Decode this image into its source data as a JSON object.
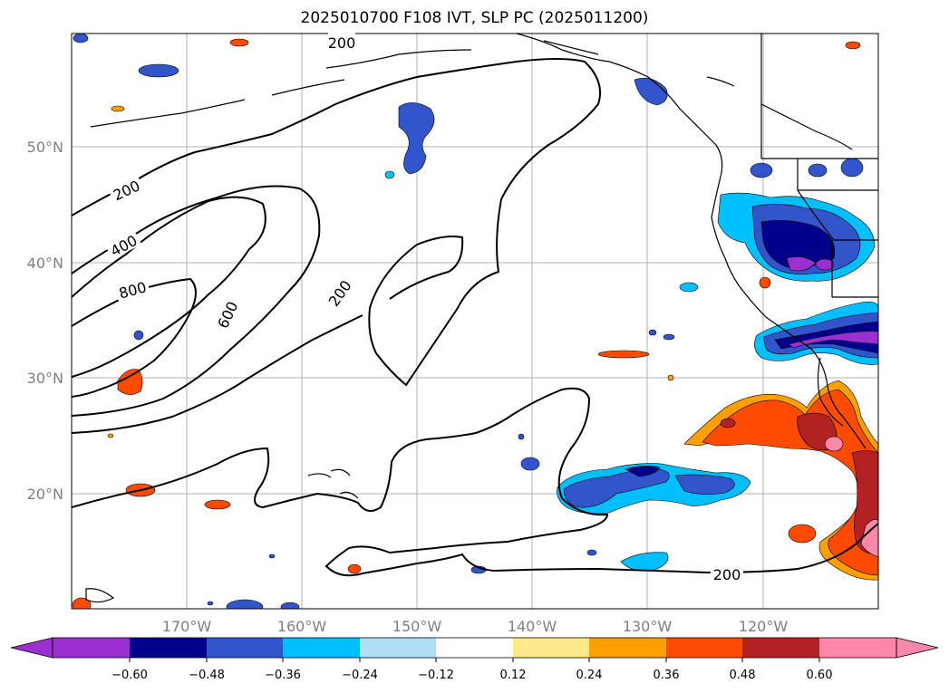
{
  "title": "2025010700 F108 IVT, SLP PC (2025011200)",
  "map": {
    "lon_labels": [
      "170°W",
      "160°W",
      "150°W",
      "140°W",
      "130°W",
      "120°W"
    ],
    "lat_labels": [
      "50°N",
      "40°N",
      "30°N",
      "20°N"
    ],
    "contour_labels": [
      "200",
      "200",
      "400",
      "800",
      "600",
      "200",
      "200"
    ],
    "colors": {
      "purple": "#9b30d0",
      "navy": "#00008b",
      "blue": "#3355cc",
      "cyan": "#00bfff",
      "lightblue": "#b0e0f5",
      "yellow": "#ffe98a",
      "orange": "#ff9f00",
      "redorange": "#ff4b00",
      "firebrick": "#b22222",
      "pink": "#ff88aa"
    }
  },
  "colorbar": {
    "ticks": [
      "−0.60",
      "−0.48",
      "−0.36",
      "−0.24",
      "−0.12",
      "0.12",
      "0.24",
      "0.36",
      "0.48",
      "0.60"
    ],
    "colors": [
      "#9b30d0",
      "#00008b",
      "#3355cc",
      "#00bfff",
      "#b0e0f5",
      "#ffffff",
      "#ffe98a",
      "#ff9f00",
      "#ff4b00",
      "#b22222",
      "#ff88aa"
    ]
  }
}
